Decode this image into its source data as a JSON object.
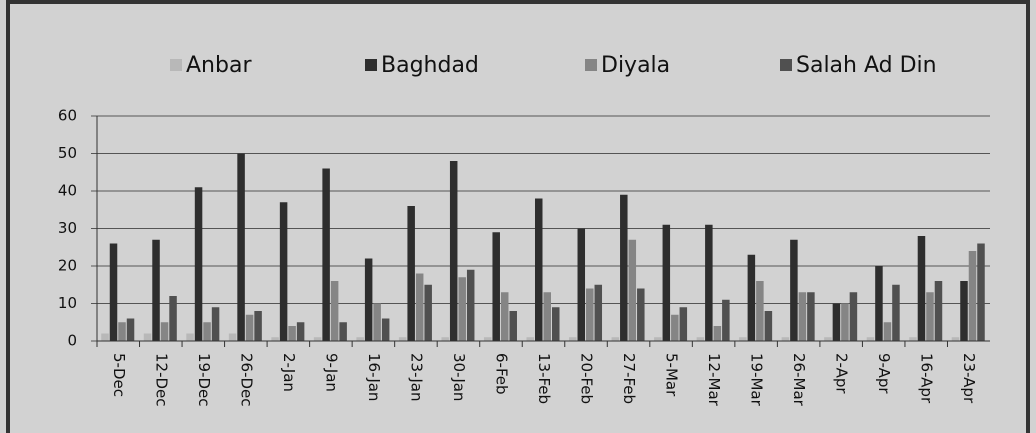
{
  "chart_data": {
    "type": "bar",
    "categories": [
      "5-Dec",
      "12-Dec",
      "19-Dec",
      "26-Dec",
      "2-Jan",
      "9-Jan",
      "16-Jan",
      "23-Jan",
      "30-Jan",
      "6-Feb",
      "13-Feb",
      "20-Feb",
      "27-Feb",
      "5-Mar",
      "12-Mar",
      "19-Mar",
      "26-Mar",
      "2-Apr",
      "9-Apr",
      "16-Apr",
      "23-Apr"
    ],
    "series": [
      {
        "name": "Anbar",
        "color": "#b8b8b8",
        "values": [
          2,
          2,
          2,
          2,
          1,
          1,
          1,
          1,
          1,
          1,
          1,
          1,
          1,
          1,
          1,
          1,
          1,
          1,
          1,
          1,
          1
        ]
      },
      {
        "name": "Baghdad",
        "color": "#2e2e2e",
        "values": [
          26,
          27,
          41,
          50,
          37,
          46,
          22,
          36,
          48,
          29,
          38,
          30,
          39,
          31,
          31,
          23,
          27,
          10,
          20,
          28,
          16
        ]
      },
      {
        "name": "Diyala",
        "color": "#858585",
        "values": [
          5,
          5,
          5,
          7,
          4,
          16,
          10,
          18,
          17,
          13,
          13,
          14,
          27,
          7,
          4,
          16,
          13,
          10,
          5,
          13,
          24
        ]
      },
      {
        "name": "Salah Ad Din",
        "color": "#505050",
        "values": [
          6,
          12,
          9,
          8,
          5,
          5,
          6,
          15,
          19,
          8,
          9,
          15,
          14,
          9,
          11,
          8,
          13,
          13,
          15,
          16,
          26
        ]
      }
    ],
    "ylim": [
      0,
      60
    ],
    "yticks": [
      0,
      10,
      20,
      30,
      40,
      50,
      60
    ],
    "grid": true,
    "legend": "top"
  }
}
